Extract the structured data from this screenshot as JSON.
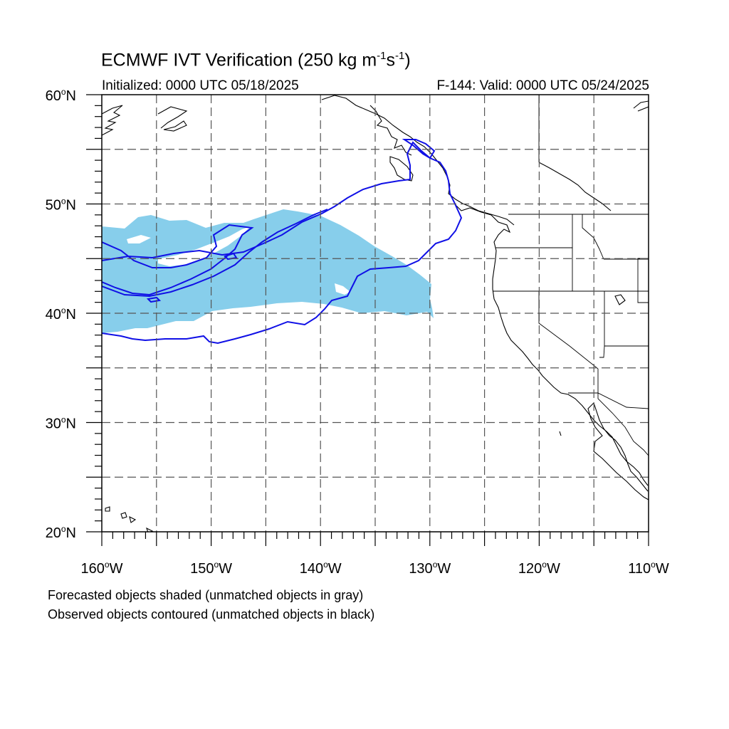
{
  "title": {
    "prefix": "ECMWF IVT Verification (250 kg m",
    "sup1": "-1",
    "mid": "s",
    "sup2": "-1",
    "suffix": ")"
  },
  "initialized": "Initialized: 0000 UTC 05/18/2025",
  "valid": "F-144: Valid: 0000 UTC 05/24/2025",
  "lat_labels": [
    {
      "deg": 60,
      "text": "60",
      "hemi": "N"
    },
    {
      "deg": 50,
      "text": "50",
      "hemi": "N"
    },
    {
      "deg": 40,
      "text": "40",
      "hemi": "N"
    },
    {
      "deg": 30,
      "text": "30",
      "hemi": "N"
    },
    {
      "deg": 20,
      "text": "20",
      "hemi": "N"
    }
  ],
  "lon_labels": [
    {
      "deg": -160,
      "text": "160",
      "hemi": "W"
    },
    {
      "deg": -150,
      "text": "150",
      "hemi": "W"
    },
    {
      "deg": -140,
      "text": "140",
      "hemi": "W"
    },
    {
      "deg": -130,
      "text": "130",
      "hemi": "W"
    },
    {
      "deg": -120,
      "text": "120",
      "hemi": "W"
    },
    {
      "deg": -110,
      "text": "110",
      "hemi": "W"
    }
  ],
  "extent": {
    "lon_min": -160,
    "lon_max": -110,
    "lat_min": 20,
    "lat_max": 60
  },
  "gridlines": {
    "lon_step": 5,
    "lat_step": 5,
    "style": "dashed"
  },
  "colors": {
    "forecast_fill": "#87ceeb",
    "observed_contour": "#1010e6",
    "coast": "#000000",
    "grid": "#555555"
  },
  "footnotes": [
    "Forecasted objects shaded (unmatched objects in gray)",
    "Observed objects contoured (unmatched objects in black)"
  ]
}
